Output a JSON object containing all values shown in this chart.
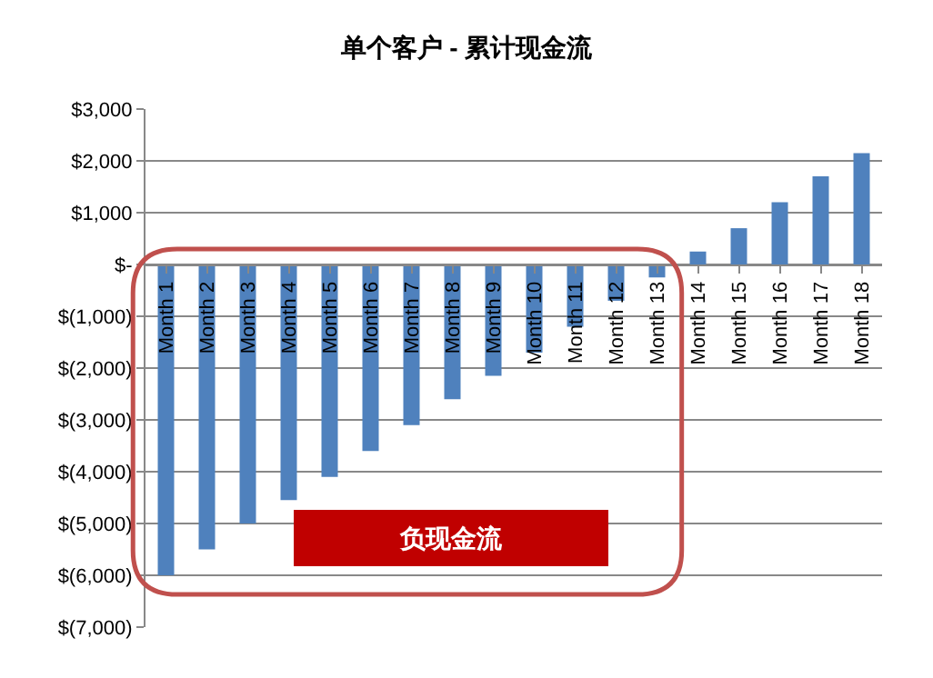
{
  "chart_data": {
    "type": "bar",
    "title": "单个客户 - 累计现金流",
    "categories": [
      "Month 1",
      "Month 2",
      "Month 3",
      "Month 4",
      "Month 5",
      "Month 6",
      "Month 7",
      "Month 8",
      "Month 9",
      "Month 10",
      "Month 11",
      "Month 12",
      "Month 13",
      "Month 14",
      "Month 15",
      "Month 16",
      "Month 17",
      "Month 18"
    ],
    "values": [
      -6000,
      -5500,
      -5000,
      -4550,
      -4100,
      -3600,
      -3100,
      -2600,
      -2150,
      -1700,
      -1200,
      -700,
      -250,
      250,
      700,
      1200,
      1700,
      2150
    ],
    "color": "#4f81bd",
    "ylim": [
      -7000,
      3000
    ],
    "yticks": [
      {
        "value": 3000,
        "label": "$3,000"
      },
      {
        "value": 2000,
        "label": "$2,000"
      },
      {
        "value": 1000,
        "label": "$1,000"
      },
      {
        "value": 0,
        "label": "$-"
      },
      {
        "value": -1000,
        "label": "$(1,000)"
      },
      {
        "value": -2000,
        "label": "$(2,000)"
      },
      {
        "value": -3000,
        "label": "$(3,000)"
      },
      {
        "value": -4000,
        "label": "$(4,000)"
      },
      {
        "value": -5000,
        "label": "$(5,000)"
      },
      {
        "value": -6000,
        "label": "$(6,000)"
      },
      {
        "value": -7000,
        "label": "$(7,000)"
      }
    ],
    "grid": "y",
    "annotations": [
      "负现金流"
    ]
  }
}
